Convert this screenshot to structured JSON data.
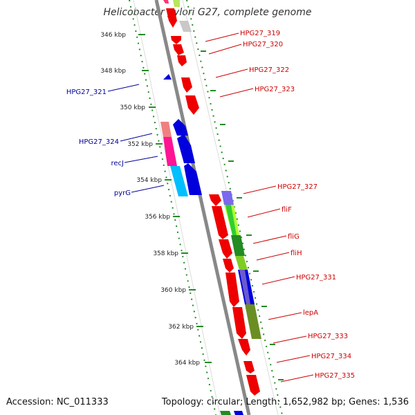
{
  "title": "Helicobacter pylori G27, complete genome",
  "footer": {
    "accession": "Accession: NC_011333",
    "summary": "Topology: circular; Length: 1,652,982 bp; Genes: 1,536"
  },
  "ticks": [
    "346 kbp",
    "348 kbp",
    "350 kbp",
    "352 kbp",
    "354 kbp",
    "356 kbp",
    "358 kbp",
    "360 kbp",
    "362 kbp",
    "364 kbp"
  ],
  "labels_left": [
    "HPG27_321",
    "HPG27_324",
    "recJ",
    "pyrG"
  ],
  "labels_right": [
    "HPG27_319",
    "HPG27_320",
    "HPG27_322",
    "HPG27_323",
    "HPG27_327",
    "fliF",
    "fliG",
    "fliH",
    "HPG27_331",
    "lepA",
    "HPG27_333",
    "HPG27_334",
    "HPG27_335"
  ],
  "colors": {
    "forward": "#ee0000",
    "reverse_blue": "#0000dd",
    "label_left": "#000099",
    "label_right": "#cc0000",
    "tick": "#228b22",
    "backbone": "#888888"
  }
}
